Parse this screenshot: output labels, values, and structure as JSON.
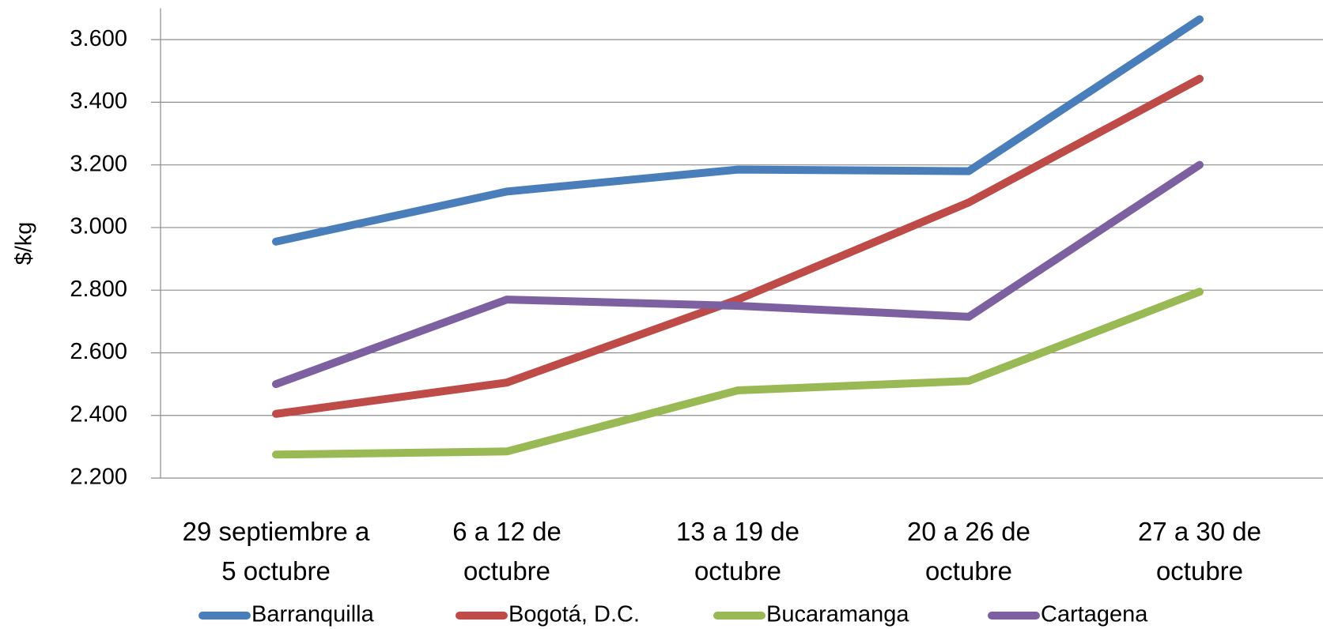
{
  "chart_data": {
    "type": "line",
    "y_label": "$/kg",
    "categories": [
      "29 septiembre a\n5 octubre",
      "6 a 12 de\noctubre",
      "13 a 19 de\noctubre",
      "20 a 26 de\noctubre",
      "27 a 30 de\noctubre"
    ],
    "series": [
      {
        "name": "Barranquilla",
        "color": "#4a7ebb",
        "values": [
          2955,
          3115,
          3185,
          3180,
          3665
        ]
      },
      {
        "name": "Bogotá, D.C.",
        "color": "#be4b48",
        "values": [
          2405,
          2505,
          2770,
          3080,
          3475
        ]
      },
      {
        "name": "Bucaramanga",
        "color": "#98b954",
        "values": [
          2275,
          2285,
          2480,
          2510,
          2795
        ]
      },
      {
        "name": "Cartagena",
        "color": "#7d60a0",
        "values": [
          2500,
          2770,
          2750,
          2715,
          3200
        ]
      }
    ],
    "ylim": [
      2200,
      3700
    ],
    "yticks": [
      {
        "value": 2200,
        "label": "2.200"
      },
      {
        "value": 2400,
        "label": "2.400"
      },
      {
        "value": 2600,
        "label": "2.600"
      },
      {
        "value": 2800,
        "label": "2.800"
      },
      {
        "value": 3000,
        "label": "3.000"
      },
      {
        "value": 3200,
        "label": "3.200"
      },
      {
        "value": 3400,
        "label": "3.400"
      },
      {
        "value": 3600,
        "label": "3.600"
      }
    ],
    "grid": true,
    "legend": "bottom"
  }
}
